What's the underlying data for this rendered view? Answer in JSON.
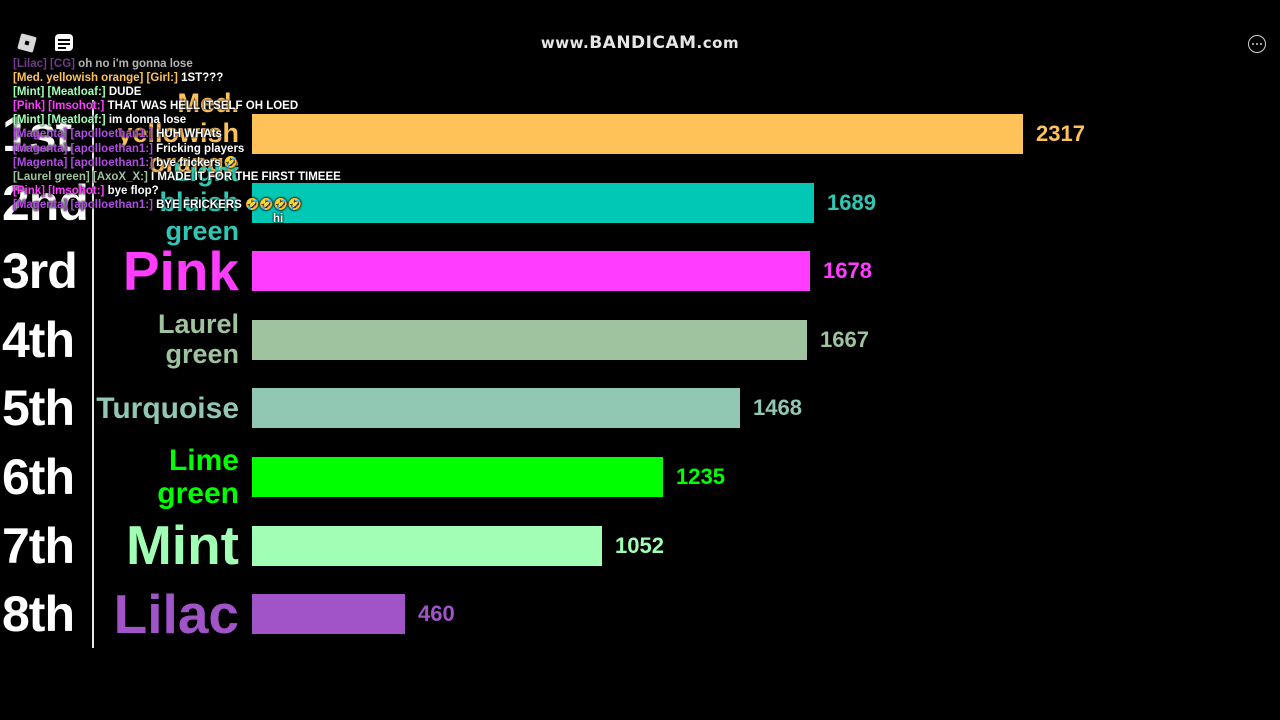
{
  "watermark": {
    "prefix": "www.",
    "brand": "BANDICAM",
    "suffix": ".com"
  },
  "icons": {
    "logo": "roblox-logo-icon",
    "chat": "chat-bubble-icon",
    "menu": "more-menu-icon"
  },
  "chart_data": {
    "type": "bar",
    "orientation": "horizontal",
    "categories": [
      "Med. yellowish orange",
      "Light bluish green",
      "Pink",
      "Laurel green",
      "Turquoise",
      "Lime green",
      "Mint",
      "Lilac"
    ],
    "ranks": [
      "1st",
      "2nd",
      "3rd",
      "4th",
      "5th",
      "6th",
      "7th",
      "8th"
    ],
    "values": [
      2317,
      1689,
      1678,
      1667,
      1468,
      1235,
      1052,
      460
    ],
    "colors": [
      "#ffc259",
      "#00c8b4",
      "#ff3cff",
      "#9fc29f",
      "#90c8b4",
      "#00ff00",
      "#a0ffb4",
      "#a054c8"
    ],
    "label_colors": [
      "#ffc259",
      "#30c8b4",
      "#ff3cff",
      "#9fc29f",
      "#90c8b4",
      "#00ff00",
      "#a0ffb4",
      "#a054c8"
    ],
    "xlim": [
      0,
      2317
    ]
  },
  "chat": [
    {
      "prefix": "[Lilac] [CG] ",
      "prefix_color": "#a054c8",
      "text": "oh no i'm gonna lose",
      "state": "partial"
    },
    {
      "prefix": "[Med. yellowish orange] [Girl:]",
      "prefix_color": "#ffc259",
      "text": "1ST???",
      "state": ""
    },
    {
      "prefix": "[Mint] [Meatloaf:]",
      "prefix_color": "#a0ffb4",
      "text": "DUDE",
      "state": ""
    },
    {
      "prefix": "[Pink] [Imsohot:]",
      "prefix_color": "#ff3cff",
      "text": "THAT WAS HELL ITSELF OH LOED",
      "state": ""
    },
    {
      "prefix": "[Mint] [Meatloaf:]",
      "prefix_color": "#a0ffb4",
      "text": "im donna lose",
      "state": ""
    },
    {
      "prefix": "[Magenta] [apolloethan1:]",
      "prefix_color": "#b04ce0",
      "text": "HUH WHAts",
      "state": ""
    },
    {
      "prefix": "[Magenta] [apolloethan1:]",
      "prefix_color": "#b04ce0",
      "text": "Fricking players",
      "state": ""
    },
    {
      "prefix": "[Magenta] [apolloethan1:]",
      "prefix_color": "#b04ce0",
      "text": "bye frickers 🤣",
      "state": ""
    },
    {
      "prefix": "[Laurel green] [AxoX_X:]",
      "prefix_color": "#9fc29f",
      "text": "I MADE IT FOR THE FIRST TIMEEE",
      "state": ""
    },
    {
      "prefix": "[Pink] [Imsohot:]",
      "prefix_color": "#ff3cff",
      "text": "bye flop?",
      "state": ""
    },
    {
      "prefix": "[Magenta] [apolloethan1:]",
      "prefix_color": "#b04ce0",
      "text": "BYE FRICKERS 🤣🤣🤣🤣",
      "state": ""
    },
    {
      "prefix": "",
      "prefix_color": "#30c8b4",
      "text": "hi",
      "state": ""
    }
  ]
}
